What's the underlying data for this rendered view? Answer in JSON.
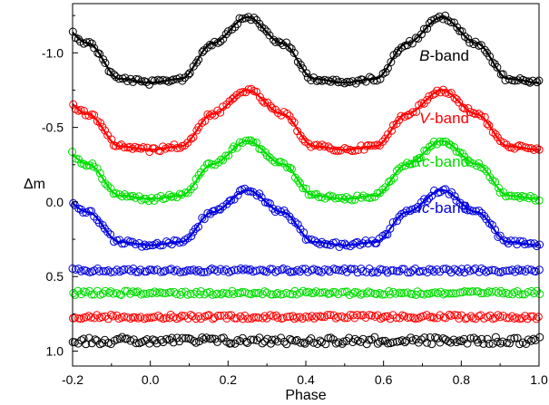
{
  "chart_data": {
    "type": "scatter",
    "title": "",
    "xlabel": "Phase",
    "ylabel": "Δm",
    "xlim": [
      -0.2,
      1.0
    ],
    "ylim": [
      -1.33,
      1.1
    ],
    "y_inverted": true,
    "x_ticks": [
      "-0.2",
      "0.0",
      "0.2",
      "0.4",
      "0.6",
      "0.8",
      "1.0"
    ],
    "y_ticks": [
      "-1.0",
      "-0.5",
      "0.0",
      "0.5",
      "1.0"
    ],
    "grid": false,
    "curve_model": {
      "phase": [
        0.0,
        0.08,
        0.16,
        0.25,
        0.34,
        0.42,
        0.5,
        0.58,
        0.66,
        0.75,
        0.84,
        0.92,
        1.0
      ],
      "shape": [
        1.0,
        0.94,
        0.4,
        0.0,
        0.4,
        0.94,
        1.0,
        0.94,
        0.4,
        0.0,
        0.4,
        0.94,
        1.0
      ]
    },
    "series": [
      {
        "name": "B-band",
        "italic": "B",
        "suffix": "-band",
        "color": "#000000",
        "max_light": -1.24,
        "min_light": -0.8
      },
      {
        "name": "V-band",
        "italic": "V",
        "suffix": "-band",
        "color": "#ff0000",
        "max_light": -0.75,
        "min_light": -0.35
      },
      {
        "name": "Rc-band",
        "italic": "Rc",
        "suffix": "-band",
        "color": "#00dd00",
        "max_light": -0.41,
        "min_light": -0.02
      },
      {
        "name": "Ic-band",
        "italic": "Ic",
        "suffix": "-band",
        "color": "#0000dd",
        "max_light": -0.08,
        "min_light": 0.29
      }
    ],
    "residuals": [
      {
        "color": "#0000dd",
        "level": 0.46
      },
      {
        "color": "#00dd00",
        "level": 0.61
      },
      {
        "color": "#ff0000",
        "level": 0.77
      },
      {
        "color": "#000000",
        "level": 0.93
      }
    ]
  }
}
